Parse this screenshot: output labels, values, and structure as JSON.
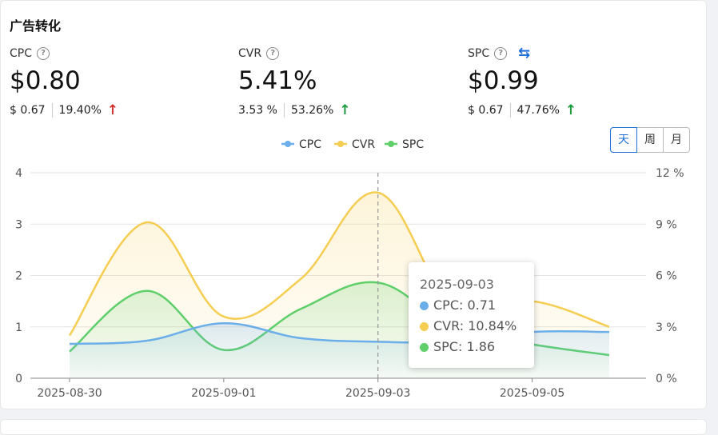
{
  "title": "广告转化",
  "metrics": [
    {
      "label": "CPC",
      "value": "$0.80",
      "prev": "$ 0.67",
      "change": "19.40%"
    },
    {
      "label": "CVR",
      "value": "5.41%",
      "prev": "3.53 %",
      "change": "53.26%"
    },
    {
      "label": "SPC",
      "value": "$0.99",
      "prev": "$ 0.67",
      "change": "47.76%"
    }
  ],
  "period_buttons": [
    "天",
    "周",
    "月"
  ],
  "active_period": "天",
  "tooltip": {
    "date": "2025-09-03",
    "rows": [
      {
        "label": "CPC:",
        "value": "0.71"
      },
      {
        "label": "CVR:",
        "value": "10.84%"
      },
      {
        "label": "SPC:",
        "value": "1.86"
      }
    ]
  },
  "colors": {
    "cpc": "#6aaeea",
    "cvr": "#f5cd52",
    "spc": "#5fcf6a",
    "accent": "#1e6fd9"
  },
  "chart_data": {
    "type": "area",
    "x": [
      "2025-08-30",
      "2025-08-31",
      "2025-09-01",
      "2025-09-02",
      "2025-09-03",
      "2025-09-04",
      "2025-09-05",
      "2025-09-06"
    ],
    "x_tick_labels": [
      "2025-08-30",
      "2025-09-01",
      "2025-09-03",
      "2025-09-05"
    ],
    "series": [
      {
        "name": "CPC",
        "axis": "left",
        "values": [
          0.67,
          0.73,
          1.07,
          0.78,
          0.71,
          0.71,
          0.9,
          0.9
        ]
      },
      {
        "name": "CVR",
        "axis": "right",
        "values": [
          2.5,
          9.1,
          3.6,
          5.8,
          10.84,
          4.0,
          4.5,
          3.0
        ]
      },
      {
        "name": "SPC",
        "axis": "left",
        "values": [
          0.52,
          1.7,
          0.55,
          1.35,
          1.86,
          0.95,
          0.66,
          0.45
        ]
      }
    ],
    "y_left": {
      "min": 0,
      "max": 4,
      "ticks": [
        "0",
        "1",
        "2",
        "3",
        "4"
      ]
    },
    "y_right": {
      "min": 0,
      "max": 12,
      "ticks": [
        "0 %",
        "3 %",
        "6 %",
        "9 %",
        "12 %"
      ]
    },
    "legend": [
      "CPC",
      "CVR",
      "SPC"
    ],
    "legend_position": "top",
    "grid": true,
    "highlight_x": "2025-09-03"
  }
}
